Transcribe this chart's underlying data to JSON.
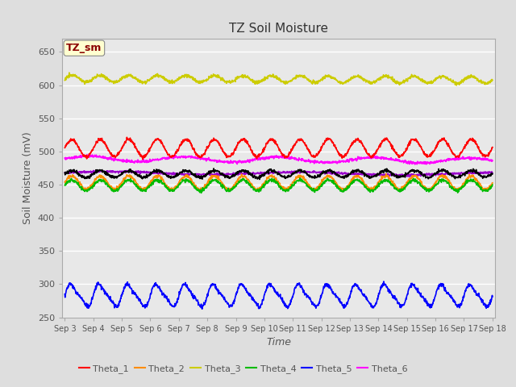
{
  "title": "TZ Soil Moisture",
  "xlabel": "Time",
  "ylabel": "Soil Moisture (mV)",
  "ylim": [
    250,
    670
  ],
  "yticks": [
    250,
    300,
    350,
    400,
    450,
    500,
    550,
    600,
    650
  ],
  "num_points": 1440,
  "series": {
    "Theta_1": {
      "color": "#FF0000",
      "base": 505,
      "amp": 13,
      "freq": 1.0,
      "trend": 0.5
    },
    "Theta_2": {
      "color": "#FF8C00",
      "base": 453,
      "amp": 10,
      "freq": 1.0,
      "trend": 0.0
    },
    "Theta_3": {
      "color": "#CCCC00",
      "base": 610,
      "amp": 5,
      "freq": 1.0,
      "trend": -2.0
    },
    "Theta_4": {
      "color": "#00BB00",
      "base": 449,
      "amp": 8,
      "freq": 1.0,
      "trend": 0.0
    },
    "Theta_5": {
      "color": "#0000FF",
      "base": 283,
      "amp": 8,
      "freq": 1.0,
      "trend": 0.0
    },
    "Theta_6": {
      "color": "#FF00FF",
      "base": 488,
      "amp": 4,
      "freq": 0.3,
      "trend": -2.0
    },
    "Theta_7": {
      "color": "#9900CC",
      "base": 468,
      "amp": 2,
      "freq": 0.2,
      "trend": -1.0
    },
    "Theta_avg": {
      "color": "#000000",
      "base": 466,
      "amp": 5,
      "freq": 1.0,
      "trend": 0.5
    }
  },
  "legend_label": "TZ_sm",
  "legend_label_color": "#8B0000",
  "legend_label_bg": "#FFFFD0",
  "background_color": "#E8E8E8",
  "grid_color": "#FFFFFF",
  "figure_bg": "#DEDEDE",
  "tick_label_color": "#555555"
}
